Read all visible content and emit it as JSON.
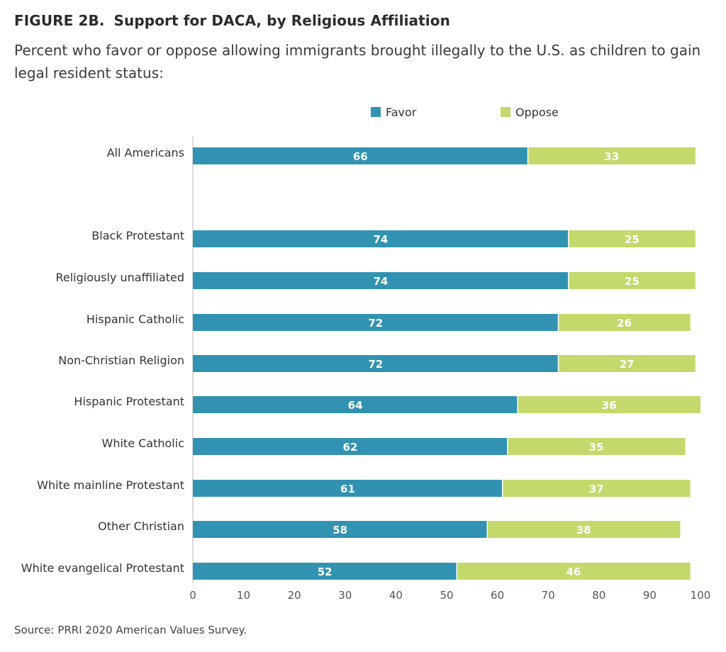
{
  "figure_label": "FIGURE 2B.",
  "title": "Support for DACA, by Religious Affiliation",
  "subtitle": "Percent who favor or oppose allowing immigrants brought illegally to the U.S. as children to gain legal resident status:",
  "source": "Source: PRRI 2020 American Values Survey.",
  "chart_data": {
    "type": "bar",
    "orientation": "horizontal",
    "stacked": true,
    "categories": [
      "All Americans",
      "Black Protestant",
      "Religiously unaffiliated",
      "Hispanic Catholic",
      "Non-Christian Religion",
      "Hispanic Protestant",
      "White Catholic",
      "White mainline Protestant",
      "Other Christian",
      "White evangelical Protestant"
    ],
    "series": [
      {
        "name": "Favor",
        "color": "#3193b1",
        "values": [
          66,
          74,
          74,
          72,
          72,
          64,
          62,
          61,
          58,
          52
        ]
      },
      {
        "name": "Oppose",
        "color": "#c3d96b",
        "values": [
          33,
          25,
          25,
          26,
          27,
          36,
          35,
          37,
          38,
          46
        ]
      }
    ],
    "xlim": [
      0,
      100
    ],
    "xticks": [
      "0",
      "10",
      "20",
      "30",
      "40",
      "50",
      "60",
      "70",
      "80",
      "90",
      "100"
    ],
    "legend_position": "top",
    "grid": false
  }
}
